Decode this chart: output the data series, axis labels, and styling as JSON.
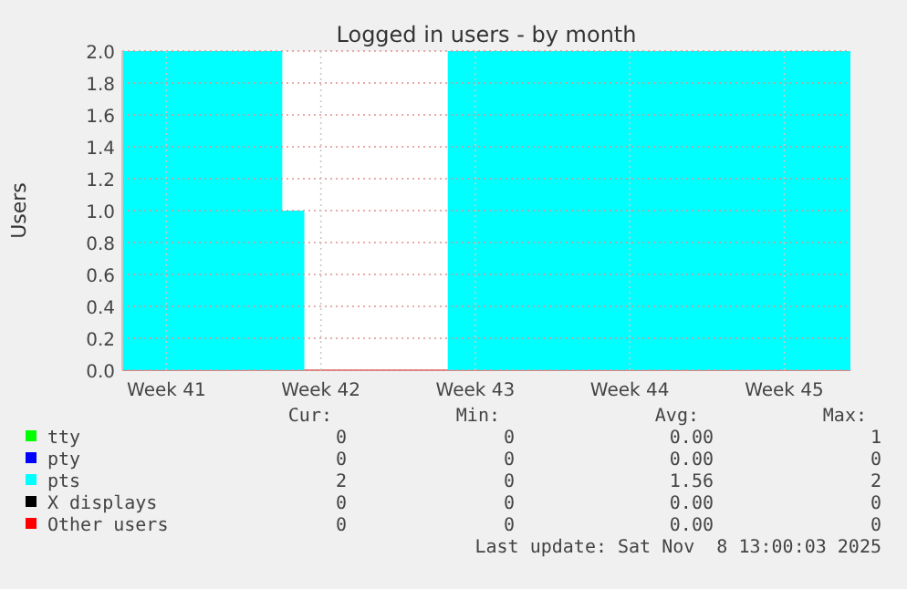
{
  "chart_data": {
    "type": "area",
    "title": "Logged in users - by month",
    "ylabel": "Users",
    "categories": [
      null,
      null,
      null,
      null,
      "Week 41",
      null,
      null,
      null,
      null,
      null,
      null,
      null,
      null,
      null,
      null,
      null,
      null,
      null,
      "Week 42",
      null,
      null,
      null,
      null,
      null,
      null,
      null,
      null,
      null,
      null,
      null,
      null,
      null,
      "Week 43",
      null,
      null,
      null,
      null,
      null,
      null,
      null,
      null,
      null,
      null,
      null,
      null,
      null,
      "Week 44",
      null,
      null,
      null,
      null,
      null,
      null,
      null,
      null,
      null,
      null,
      null,
      null,
      null,
      "Week 45",
      null,
      null,
      null,
      null,
      null,
      null
    ],
    "ylim": [
      0,
      2
    ],
    "yticks": [
      {
        "value": 0,
        "label": "0.0"
      },
      {
        "value": 0.2,
        "label": "0.2"
      },
      {
        "value": 0.4,
        "label": "0.4"
      },
      {
        "value": 0.6,
        "label": "0.6"
      },
      {
        "value": 0.8,
        "label": "0.8"
      },
      {
        "value": 1,
        "label": "1.0"
      },
      {
        "value": 1.2,
        "label": "1.2"
      },
      {
        "value": 1.4,
        "label": "1.4"
      },
      {
        "value": 1.6,
        "label": "1.6"
      },
      {
        "value": 1.8,
        "label": "1.8"
      },
      {
        "value": 2,
        "label": "2.0"
      }
    ],
    "grid": true,
    "legend": "bottom",
    "series": [
      {
        "name": "tty",
        "color": "#00ff00",
        "values": [
          null,
          null,
          null,
          null,
          null,
          null,
          null,
          null,
          null,
          null,
          null,
          null,
          null,
          null,
          null,
          null,
          null,
          null,
          null,
          null,
          null,
          null,
          null,
          null,
          null,
          null,
          null,
          null,
          null,
          null,
          null,
          null,
          null,
          null,
          null,
          null,
          null,
          null,
          null,
          null,
          null,
          null,
          null,
          null,
          null,
          null,
          null,
          null,
          null,
          null,
          null,
          null,
          null,
          null,
          null,
          null,
          null,
          null,
          null,
          null,
          null,
          null,
          null,
          null,
          null,
          null,
          null
        ]
      },
      {
        "name": "pty",
        "color": "#0000ff",
        "values": [
          null,
          null,
          null,
          null,
          null,
          null,
          null,
          null,
          null,
          null,
          null,
          null,
          null,
          null,
          null,
          null,
          null,
          null,
          null,
          null,
          null,
          null,
          null,
          null,
          null,
          null,
          null,
          null,
          null,
          null,
          null,
          null,
          null,
          null,
          null,
          null,
          null,
          null,
          null,
          null,
          null,
          null,
          null,
          null,
          null,
          null,
          null,
          null,
          null,
          null,
          null,
          null,
          null,
          null,
          null,
          null,
          null,
          null,
          null,
          null,
          null,
          null,
          null,
          null,
          null,
          null,
          null
        ]
      },
      {
        "name": "pts",
        "color": "#00ffff",
        "values": [
          2,
          2,
          2,
          2,
          2,
          2,
          2,
          2,
          2,
          2,
          2,
          2,
          2,
          2,
          2,
          1,
          1,
          0,
          0,
          0,
          0,
          0,
          0,
          0,
          0,
          0,
          0,
          0,
          0,
          0,
          2,
          2,
          2,
          2,
          2,
          2,
          2,
          2,
          2,
          2,
          2,
          2,
          2,
          2,
          2,
          2,
          2,
          2,
          2,
          2,
          2,
          2,
          2,
          2,
          2,
          2,
          2,
          2,
          2,
          2,
          2,
          2,
          2,
          2,
          2,
          2,
          2
        ]
      },
      {
        "name": "X displays",
        "color": "#000000",
        "values": [
          null,
          null,
          null,
          null,
          null,
          null,
          null,
          null,
          null,
          null,
          null,
          null,
          null,
          null,
          null,
          null,
          null,
          null,
          null,
          null,
          null,
          null,
          null,
          null,
          null,
          null,
          null,
          null,
          null,
          null,
          null,
          null,
          null,
          null,
          null,
          null,
          null,
          null,
          null,
          null,
          null,
          null,
          null,
          null,
          null,
          null,
          null,
          null,
          null,
          null,
          null,
          null,
          null,
          null,
          null,
          null,
          null,
          null,
          null,
          null,
          null,
          null,
          null,
          null,
          null,
          null,
          null
        ]
      },
      {
        "name": "Other users",
        "color": "#ff0000",
        "values": [
          null,
          null,
          null,
          null,
          null,
          null,
          null,
          null,
          null,
          null,
          null,
          null,
          null,
          null,
          null,
          null,
          null,
          null,
          null,
          null,
          null,
          null,
          null,
          null,
          null,
          null,
          null,
          null,
          null,
          null,
          null,
          null,
          null,
          null,
          null,
          null,
          null,
          null,
          null,
          null,
          null,
          null,
          null,
          null,
          null,
          null,
          null,
          null,
          null,
          null,
          null,
          null,
          null,
          null,
          null,
          null,
          null,
          null,
          null,
          null,
          null,
          null,
          null,
          null,
          null,
          null,
          null
        ]
      }
    ],
    "annotations": [
      "Cur:",
      "Min:",
      "Avg:",
      "Max:",
      "0",
      "0",
      "0.00",
      "1",
      "0",
      "0",
      "0.00",
      "0",
      "2",
      "0",
      "1.56",
      "2",
      "0",
      "0",
      "0.00",
      "0",
      "0",
      "0",
      "0.00",
      "0",
      "Last update: Sat Nov  8 13:00:03 2025"
    ]
  }
}
